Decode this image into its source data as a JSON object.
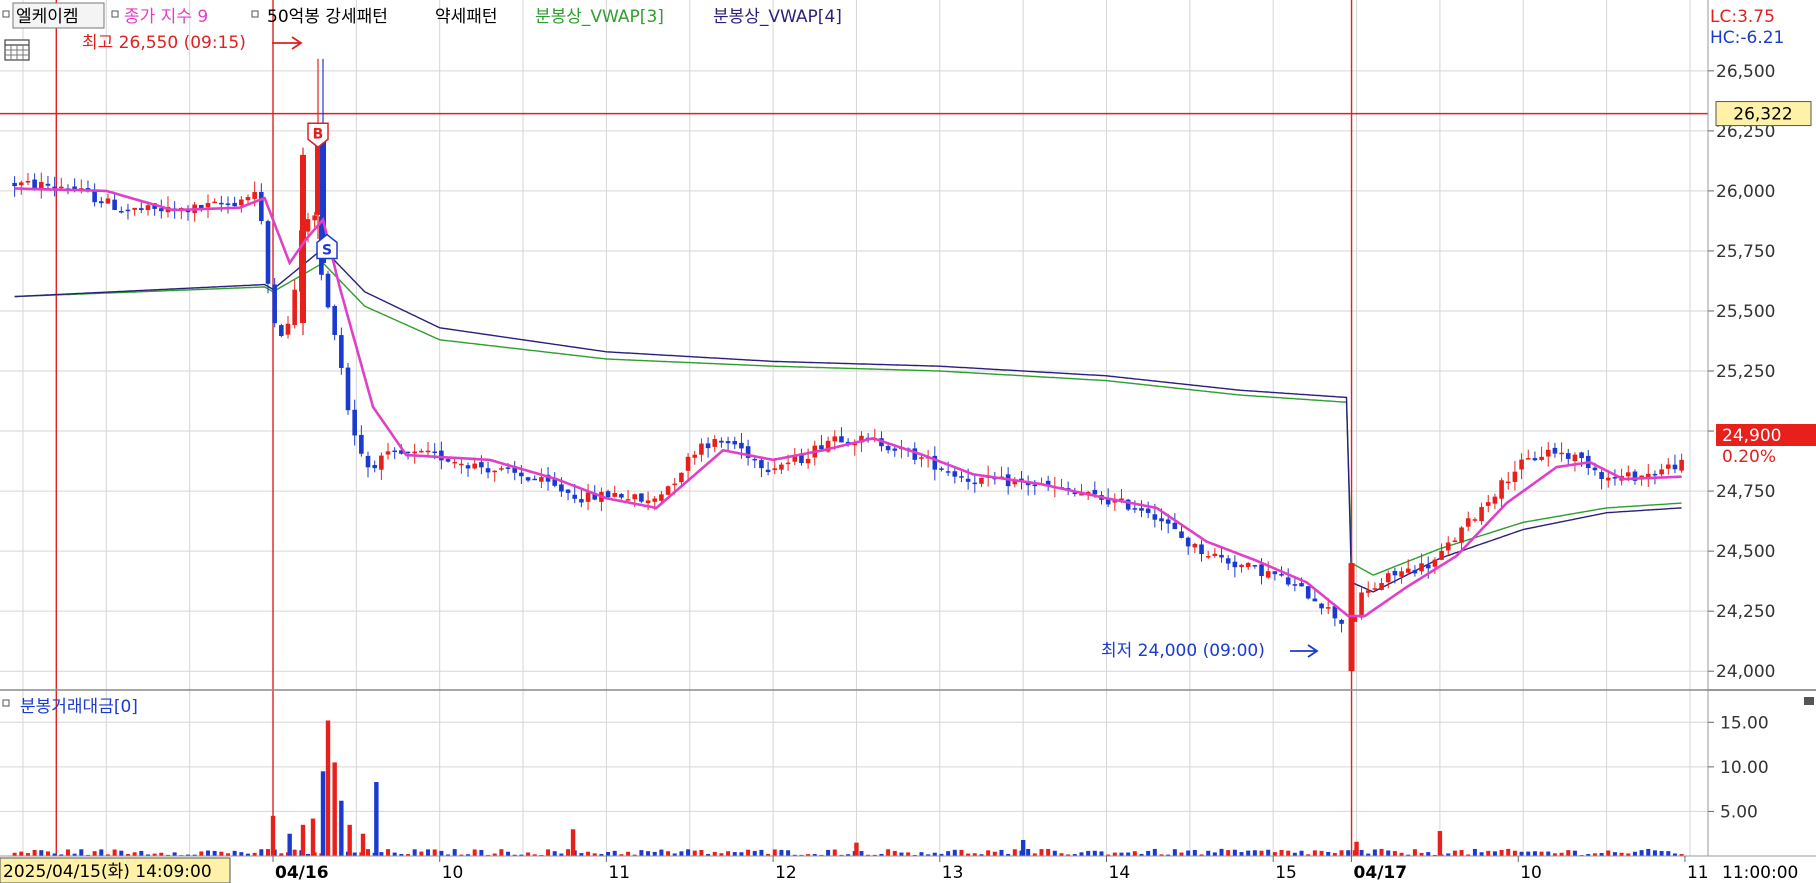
{
  "legend": {
    "symbol": "엘케이켐",
    "indicators": [
      {
        "name": "종가 지수 9",
        "color": "#e040c8"
      },
      {
        "name": "50억봉 강세패턴",
        "color": "#000000"
      },
      {
        "name": "약세패턴",
        "color": "#000000"
      },
      {
        "name": "분봉상_VWAP[3]",
        "color": "#2e9e2e"
      },
      {
        "name": "분봉상_VWAP[4]",
        "color": "#2a1f7a"
      }
    ]
  },
  "corner_values": {
    "lc": "LC:3.75",
    "hc": "HC:-6.21"
  },
  "current_price": {
    "value": "24,900",
    "change": "0.20%"
  },
  "reference_line": {
    "value": 26322,
    "label": "26,322"
  },
  "annotations": {
    "high": {
      "text": "최고 26,550 (09:15)",
      "value": 26550
    },
    "low": {
      "text": "최저 24,000 (09:00)",
      "value": 24000
    },
    "buy_marker": "B",
    "sell_marker": "S"
  },
  "volume_panel": {
    "title": "분봉거래대금[0]"
  },
  "x_axis": {
    "cursor_label": "2025/04/15(화) 14:09:00",
    "labels": [
      {
        "t": 0.0,
        "text": "04/16",
        "bold": true
      },
      {
        "t": 1.0,
        "text": "10",
        "bold": false
      },
      {
        "t": 2.0,
        "text": "11",
        "bold": false
      },
      {
        "t": 3.0,
        "text": "12",
        "bold": false
      },
      {
        "t": 4.0,
        "text": "13",
        "bold": false
      },
      {
        "t": 5.0,
        "text": "14",
        "bold": false
      },
      {
        "t": 6.0,
        "text": "15",
        "bold": false
      },
      {
        "t": 6.47,
        "text": "04/17",
        "bold": true
      },
      {
        "t": 7.47,
        "text": "10",
        "bold": false
      },
      {
        "t": 8.47,
        "text": "11",
        "bold": false
      }
    ],
    "right_label": "11:00:00"
  },
  "chart_data": {
    "type": "candlestick",
    "price_axis": {
      "min": 23930,
      "max": 26720,
      "ticks": [
        24000,
        24250,
        24500,
        24750,
        25000,
        25250,
        25500,
        25750,
        26000,
        26250,
        26500
      ],
      "tick_labels": [
        "24,000",
        "24,250",
        "24,500",
        "24,750",
        "25,000",
        "25,250",
        "25,500",
        "25,750",
        "26,000",
        "26,250",
        "26,500"
      ]
    },
    "volume_axis": {
      "min": 0,
      "max": 17.5,
      "ticks": [
        5,
        10,
        15
      ],
      "tick_labels": [
        "5.00",
        "10.00",
        "15.00"
      ]
    },
    "time_range": [
      -1.55,
      8.5
    ],
    "vertical_markers": [
      -1.3,
      0.0,
      6.47
    ],
    "price_keypoints": [
      [
        -1.55,
        26030
      ],
      [
        -1.2,
        26020
      ],
      [
        -0.85,
        25920
      ],
      [
        -0.5,
        25920
      ],
      [
        -0.2,
        25950
      ],
      [
        -0.05,
        26000
      ],
      [
        0.0,
        25650
      ],
      [
        0.07,
        25400
      ],
      [
        0.15,
        25450
      ],
      [
        0.2,
        25800
      ],
      [
        0.28,
        25950
      ],
      [
        0.32,
        25700
      ],
      [
        0.35,
        25550
      ],
      [
        0.42,
        25400
      ],
      [
        0.5,
        25050
      ],
      [
        0.6,
        24850
      ],
      [
        0.75,
        24900
      ],
      [
        1.0,
        24900
      ],
      [
        1.3,
        24850
      ],
      [
        1.6,
        24800
      ],
      [
        1.9,
        24720
      ],
      [
        2.1,
        24740
      ],
      [
        2.3,
        24700
      ],
      [
        2.45,
        24800
      ],
      [
        2.6,
        24950
      ],
      [
        2.8,
        24950
      ],
      [
        3.0,
        24850
      ],
      [
        3.2,
        24880
      ],
      [
        3.4,
        24980
      ],
      [
        3.7,
        24950
      ],
      [
        3.95,
        24880
      ],
      [
        4.2,
        24800
      ],
      [
        4.6,
        24780
      ],
      [
        5.0,
        24720
      ],
      [
        5.3,
        24670
      ],
      [
        5.55,
        24520
      ],
      [
        5.8,
        24450
      ],
      [
        6.05,
        24400
      ],
      [
        6.3,
        24300
      ],
      [
        6.46,
        24200
      ],
      [
        6.47,
        24050
      ],
      [
        6.55,
        24300
      ],
      [
        6.75,
        24400
      ],
      [
        7.0,
        24450
      ],
      [
        7.25,
        24650
      ],
      [
        7.5,
        24850
      ],
      [
        7.7,
        24920
      ],
      [
        7.9,
        24880
      ],
      [
        8.05,
        24800
      ],
      [
        8.3,
        24820
      ],
      [
        8.45,
        24860
      ]
    ],
    "ema9_keypoints": [
      [
        -1.55,
        26010
      ],
      [
        -1.0,
        26000
      ],
      [
        -0.6,
        25920
      ],
      [
        -0.2,
        25930
      ],
      [
        -0.05,
        25970
      ],
      [
        0.1,
        25700
      ],
      [
        0.2,
        25800
      ],
      [
        0.3,
        25880
      ],
      [
        0.4,
        25600
      ],
      [
        0.6,
        25100
      ],
      [
        0.8,
        24900
      ],
      [
        1.3,
        24880
      ],
      [
        1.7,
        24800
      ],
      [
        2.0,
        24720
      ],
      [
        2.3,
        24680
      ],
      [
        2.5,
        24800
      ],
      [
        2.7,
        24920
      ],
      [
        3.0,
        24880
      ],
      [
        3.3,
        24920
      ],
      [
        3.6,
        24970
      ],
      [
        3.9,
        24900
      ],
      [
        4.2,
        24820
      ],
      [
        4.6,
        24780
      ],
      [
        5.0,
        24720
      ],
      [
        5.3,
        24680
      ],
      [
        5.6,
        24540
      ],
      [
        5.9,
        24460
      ],
      [
        6.2,
        24370
      ],
      [
        6.45,
        24230
      ],
      [
        6.55,
        24230
      ],
      [
        6.8,
        24350
      ],
      [
        7.1,
        24480
      ],
      [
        7.4,
        24700
      ],
      [
        7.7,
        24850
      ],
      [
        7.9,
        24870
      ],
      [
        8.1,
        24800
      ],
      [
        8.45,
        24810
      ]
    ],
    "vwap3_keypoints": [
      [
        -1.55,
        25560
      ],
      [
        -0.05,
        25600
      ],
      [
        0.0,
        25580
      ],
      [
        0.3,
        25700
      ],
      [
        0.55,
        25520
      ],
      [
        1.0,
        25380
      ],
      [
        2.0,
        25300
      ],
      [
        3.0,
        25270
      ],
      [
        4.0,
        25250
      ],
      [
        5.0,
        25210
      ],
      [
        5.8,
        25150
      ],
      [
        6.44,
        25120
      ],
      [
        6.47,
        24450
      ],
      [
        6.6,
        24400
      ],
      [
        7.0,
        24510
      ],
      [
        7.5,
        24620
      ],
      [
        8.0,
        24680
      ],
      [
        8.45,
        24700
      ]
    ],
    "vwap4_keypoints": [
      [
        -1.55,
        25560
      ],
      [
        -0.05,
        25610
      ],
      [
        0.0,
        25590
      ],
      [
        0.3,
        25760
      ],
      [
        0.55,
        25580
      ],
      [
        1.0,
        25430
      ],
      [
        2.0,
        25330
      ],
      [
        3.0,
        25290
      ],
      [
        4.0,
        25270
      ],
      [
        5.0,
        25230
      ],
      [
        5.8,
        25170
      ],
      [
        6.44,
        25140
      ],
      [
        6.47,
        24370
      ],
      [
        6.6,
        24330
      ],
      [
        7.0,
        24470
      ],
      [
        7.5,
        24590
      ],
      [
        8.0,
        24660
      ],
      [
        8.45,
        24680
      ]
    ],
    "volume_spikes": [
      [
        0.0,
        4.5
      ],
      [
        0.1,
        2.5
      ],
      [
        0.18,
        3.5
      ],
      [
        0.24,
        4.2
      ],
      [
        0.3,
        9.5
      ],
      [
        0.33,
        15.2
      ],
      [
        0.37,
        10.5
      ],
      [
        0.41,
        6.2
      ],
      [
        0.46,
        3.5
      ],
      [
        0.54,
        2.5
      ],
      [
        0.62,
        8.3
      ],
      [
        1.8,
        3.0
      ],
      [
        3.5,
        1.5
      ],
      [
        4.5,
        1.8
      ],
      [
        6.5,
        1.6
      ],
      [
        7.0,
        2.8
      ]
    ]
  }
}
